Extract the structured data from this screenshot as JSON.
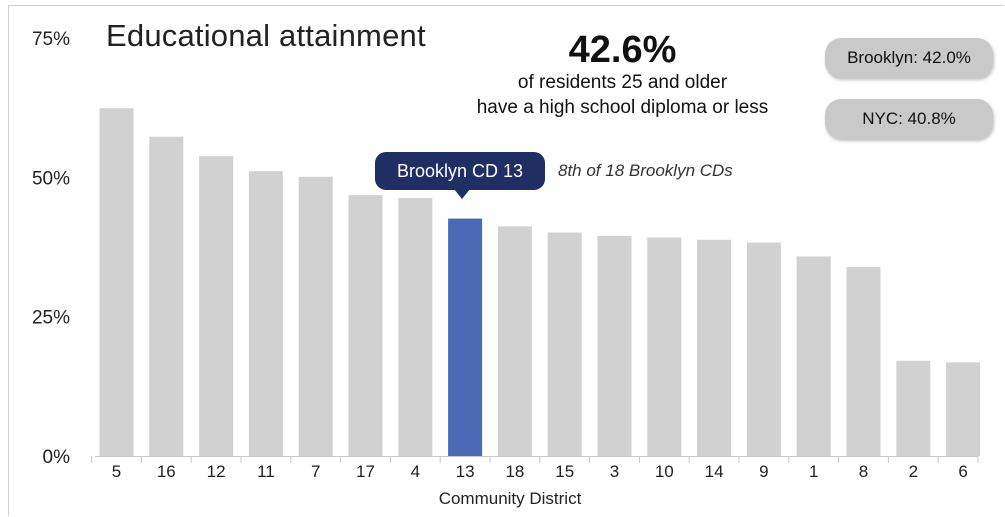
{
  "chart_data": {
    "type": "bar",
    "title": "Educational attainment",
    "xlabel": "Community District",
    "ylabel": "",
    "ylim": [
      0,
      75
    ],
    "yticks": [
      0,
      25,
      50,
      75
    ],
    "ytick_labels": [
      "0%",
      "25%",
      "50%",
      "75%"
    ],
    "grid": false,
    "categories": [
      "5",
      "16",
      "12",
      "11",
      "7",
      "17",
      "4",
      "13",
      "18",
      "15",
      "3",
      "10",
      "14",
      "9",
      "1",
      "8",
      "2",
      "6"
    ],
    "values": [
      62.4,
      57.3,
      53.8,
      51.1,
      50.1,
      46.8,
      46.3,
      42.6,
      41.2,
      40.1,
      39.5,
      39.2,
      38.8,
      38.3,
      35.8,
      33.9,
      17.1,
      16.8
    ],
    "highlight_category": "13",
    "colors": {
      "bar": "#d1d1d1",
      "highlight": "#4a6ab5",
      "callout": "#1f2f63",
      "pill": "#c9c9c9",
      "axis": "#c8c8c8"
    }
  },
  "headline": {
    "value": "42.6%",
    "line1": "of residents 25 and older",
    "line2": "have a high school diploma or less"
  },
  "comparisons": {
    "borough": "Brooklyn: 42.0%",
    "city": "NYC: 40.8%"
  },
  "callout": {
    "label": "Brooklyn CD 13",
    "rank": "8th of 18 Brooklyn CDs"
  }
}
